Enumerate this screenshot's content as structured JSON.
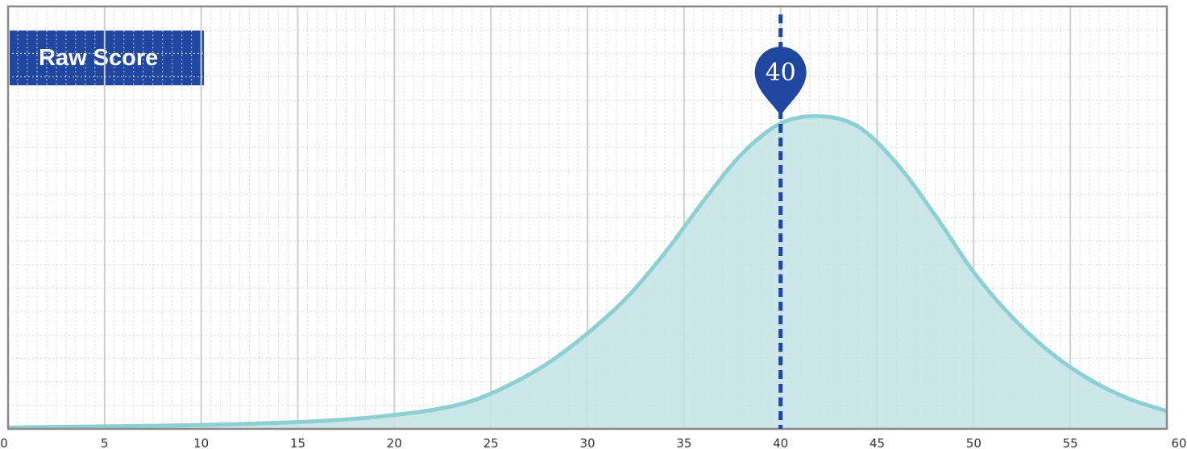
{
  "title_badge": "Raw Score",
  "colors": {
    "curve": "#8ecfd4",
    "fill": "#c3e3e6",
    "marker": "#1f47a0",
    "frame": "#8a8a8a",
    "grid_major": "#cfcfcf",
    "grid_minor": "#d6d6d6"
  },
  "chart_data": {
    "type": "area",
    "title": "Raw Score",
    "xlim": [
      0,
      60
    ],
    "x_ticks": [
      0,
      5,
      10,
      15,
      20,
      25,
      30,
      35,
      40,
      45,
      50,
      55,
      60
    ],
    "y_axis_shown": false,
    "grid": true,
    "series": [
      {
        "x": [
          0,
          5,
          10,
          15,
          18,
          20,
          22,
          24,
          26,
          28,
          30,
          32,
          34,
          36,
          38,
          40,
          42,
          44,
          46,
          48,
          50,
          52,
          54,
          56,
          58,
          60
        ],
        "y": [
          0.3,
          0.6,
          0.9,
          1.6,
          2.4,
          3.3,
          4.5,
          6.6,
          10.5,
          15.7,
          22.6,
          30.9,
          41.6,
          53.9,
          65.1,
          72.3,
          74.0,
          71.6,
          62.9,
          50.6,
          37.1,
          26.4,
          18.0,
          11.7,
          7.2,
          4.2
        ]
      }
    ],
    "marker": {
      "x": 40,
      "label": "40"
    }
  }
}
